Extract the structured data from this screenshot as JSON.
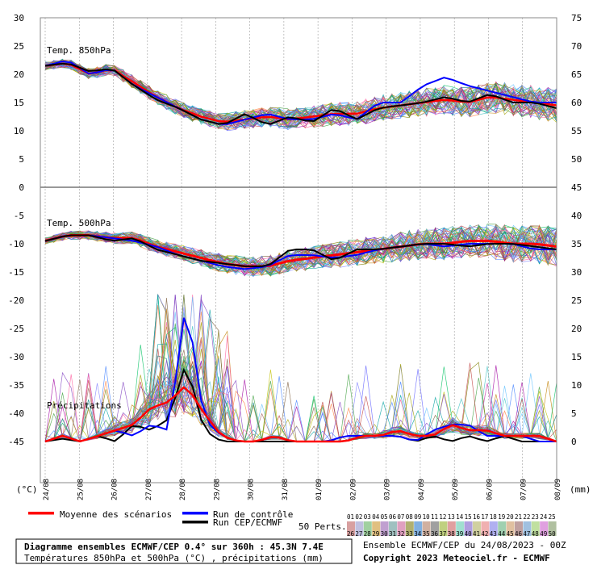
{
  "chart_data": {
    "type": "line",
    "panels": [
      {
        "label": "Temp. 850hPa"
      },
      {
        "label": "Temp. 500hPa"
      },
      {
        "label": "Précipitations"
      }
    ],
    "left_axis": {
      "unit": "(°C)",
      "ticks": [
        30,
        25,
        20,
        15,
        10,
        5,
        0,
        -5,
        -10,
        -15,
        -20,
        -25,
        -30,
        -35,
        -40,
        -45
      ]
    },
    "right_axis": {
      "unit": "(mm)",
      "ticks": [
        75,
        70,
        65,
        60,
        55,
        50,
        45,
        40,
        35,
        30,
        25,
        20,
        15,
        10,
        5,
        0
      ]
    },
    "x_labels": [
      "24/08",
      "25/08",
      "26/08",
      "27/08",
      "28/08",
      "29/08",
      "30/08",
      "31/08",
      "01/09",
      "02/09",
      "03/09",
      "04/09",
      "05/09",
      "06/09",
      "07/09",
      "08/09"
    ],
    "series": [
      {
        "name": "Moyenne des scénarios",
        "color": "#ff0000"
      },
      {
        "name": "Run de contrôle",
        "color": "#0000ff"
      },
      {
        "name": "Run CEP/ECMWF",
        "color": "#000000"
      }
    ],
    "temp850": {
      "mean": [
        21.5,
        22,
        20,
        21,
        18.5,
        16,
        14,
        12.5,
        11.5,
        12,
        12.5,
        12,
        12.5,
        13,
        13,
        14,
        14.5,
        15,
        15.5,
        15,
        16,
        15.5,
        15,
        14.5
      ],
      "control": [
        21.5,
        22.5,
        20,
        21,
        18,
        16,
        14,
        12,
        11,
        12,
        13,
        12,
        12,
        13,
        12,
        15,
        15,
        18,
        19.5,
        18,
        17,
        16,
        15,
        15
      ],
      "cep": [
        21.5,
        22,
        20.5,
        21,
        18,
        15.5,
        14,
        12,
        11,
        13,
        11,
        12.5,
        11.5,
        14,
        12,
        14,
        14.5,
        15,
        16,
        15,
        16.5,
        15,
        15,
        14
      ]
    },
    "temp500": {
      "mean": [
        -9.5,
        -8.5,
        -8.5,
        -9,
        -9,
        -10.5,
        -11.5,
        -12.5,
        -13.5,
        -14,
        -14,
        -13,
        -12.5,
        -12,
        -11.5,
        -11,
        -10.5,
        -10,
        -10,
        -9.5,
        -9.5,
        -10,
        -10,
        -10.5
      ],
      "control": [
        -9.5,
        -8.5,
        -8.5,
        -9,
        -9.5,
        -10.5,
        -12,
        -13,
        -14,
        -14.5,
        -14,
        -12,
        -12,
        -12.5,
        -12,
        -11,
        -10.5,
        -10,
        -10.5,
        -10,
        -10,
        -10,
        -11,
        -11
      ],
      "cep": [
        -9.5,
        -8.5,
        -8.5,
        -9.5,
        -9,
        -11,
        -12,
        -13,
        -13.5,
        -14,
        -14,
        -11,
        -11,
        -13,
        -11,
        -11,
        -10.5,
        -10,
        -10,
        -10.5,
        -10,
        -10,
        -10.5,
        -11
      ]
    },
    "precip_mm": {
      "mean": [
        0,
        1,
        0,
        1,
        2,
        3,
        6,
        7,
        10,
        5,
        1,
        0,
        0,
        1,
        0,
        0,
        0,
        0,
        1,
        1,
        2,
        1,
        1,
        3,
        2,
        2,
        1,
        1,
        1,
        0
      ],
      "control": [
        0,
        1,
        0,
        1,
        2,
        1,
        3,
        2,
        25,
        4,
        1,
        0,
        0,
        1,
        0,
        0,
        0,
        1,
        1,
        1,
        1,
        0,
        2,
        3,
        3,
        1,
        1,
        1,
        0,
        0
      ],
      "cep": [
        0,
        0.5,
        0,
        1,
        0,
        3,
        2,
        4,
        14,
        2,
        0,
        0,
        0,
        0,
        0,
        0,
        0,
        0,
        1,
        1,
        1,
        0,
        1,
        0,
        1,
        0,
        1,
        0,
        0,
        0
      ]
    },
    "colors": {
      "mean": "#ff0000",
      "control": "#0000ff",
      "cep": "#000000",
      "grid": "#9c9c9c",
      "frame": "#8a8a8a"
    }
  },
  "legend": {
    "items": [
      {
        "label": "Moyenne des scénarios",
        "color": "#ff0000"
      },
      {
        "label": "Run de contrôle",
        "color": "#0000ff"
      },
      {
        "label": "Run CEP/ECMWF",
        "color": "#000000"
      }
    ],
    "perts_label": "50 Perts.",
    "member_labels": [
      "01",
      "02",
      "03",
      "04",
      "05",
      "06",
      "07",
      "08",
      "09",
      "10",
      "11",
      "12",
      "13",
      "14",
      "15",
      "16",
      "17",
      "18",
      "19",
      "20",
      "21",
      "22",
      "23",
      "24",
      "25",
      "26",
      "27",
      "28",
      "29",
      "30",
      "31",
      "32",
      "33",
      "34",
      "35",
      "36",
      "37",
      "38",
      "39",
      "40",
      "41",
      "42",
      "43",
      "44",
      "45",
      "46",
      "47",
      "48",
      "49",
      "50"
    ]
  },
  "footer": {
    "title": "Diagramme ensembles ECMWF/CEP 0.4° sur 360h : 45.3N 7.4E",
    "subtitle": "Températures 850hPa et 500hPa (°C) , précipitations (mm)",
    "run_info": "Ensemble ECMWF/CEP du 24/08/2023 - 00Z",
    "copyright": "Copyright 2023 Meteociel.fr - ECMWF"
  }
}
